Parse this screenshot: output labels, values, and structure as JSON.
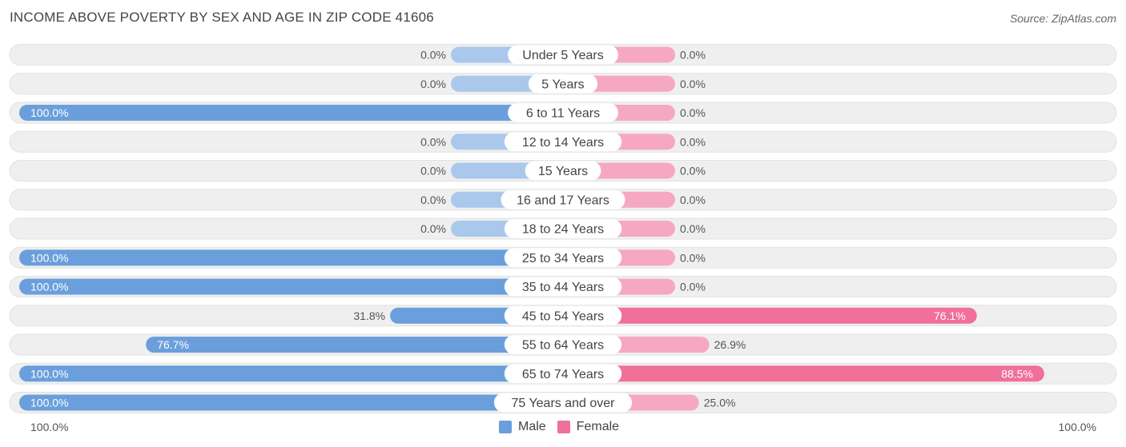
{
  "header": {
    "title": "INCOME ABOVE POVERTY BY SEX AND AGE IN ZIP CODE 41606",
    "source": "Source: ZipAtlas.com"
  },
  "axis": {
    "left_label": "100.0%",
    "right_label": "100.0%"
  },
  "legend": {
    "male_label": "Male",
    "female_label": "Female"
  },
  "colors": {
    "male_strong": "#6a9fdc",
    "male_light": "#a9c8ec",
    "female_strong": "#f0709a",
    "female_light": "#f6a8c2",
    "row_bg": "#efefef"
  },
  "chart_data": {
    "type": "bar",
    "orientation": "horizontal-diverging",
    "categories": [
      "Under 5 Years",
      "5 Years",
      "6 to 11 Years",
      "12 to 14 Years",
      "15 Years",
      "16 and 17 Years",
      "18 to 24 Years",
      "25 to 34 Years",
      "35 to 44 Years",
      "45 to 54 Years",
      "55 to 64 Years",
      "65 to 74 Years",
      "75 Years and over"
    ],
    "series": [
      {
        "name": "Male",
        "values": [
          0.0,
          0.0,
          100.0,
          0.0,
          0.0,
          0.0,
          0.0,
          100.0,
          100.0,
          31.8,
          76.7,
          100.0,
          100.0
        ],
        "labels": [
          "0.0%",
          "0.0%",
          "100.0%",
          "0.0%",
          "0.0%",
          "0.0%",
          "0.0%",
          "100.0%",
          "100.0%",
          "31.8%",
          "76.7%",
          "100.0%",
          "100.0%"
        ]
      },
      {
        "name": "Female",
        "values": [
          0.0,
          0.0,
          0.0,
          0.0,
          0.0,
          0.0,
          0.0,
          0.0,
          0.0,
          76.1,
          26.9,
          88.5,
          25.0
        ],
        "labels": [
          "0.0%",
          "0.0%",
          "0.0%",
          "0.0%",
          "0.0%",
          "0.0%",
          "0.0%",
          "0.0%",
          "0.0%",
          "76.1%",
          "26.9%",
          "88.5%",
          "25.0%"
        ]
      }
    ],
    "xlim": [
      -100,
      100
    ],
    "legend_position": "bottom-center"
  }
}
